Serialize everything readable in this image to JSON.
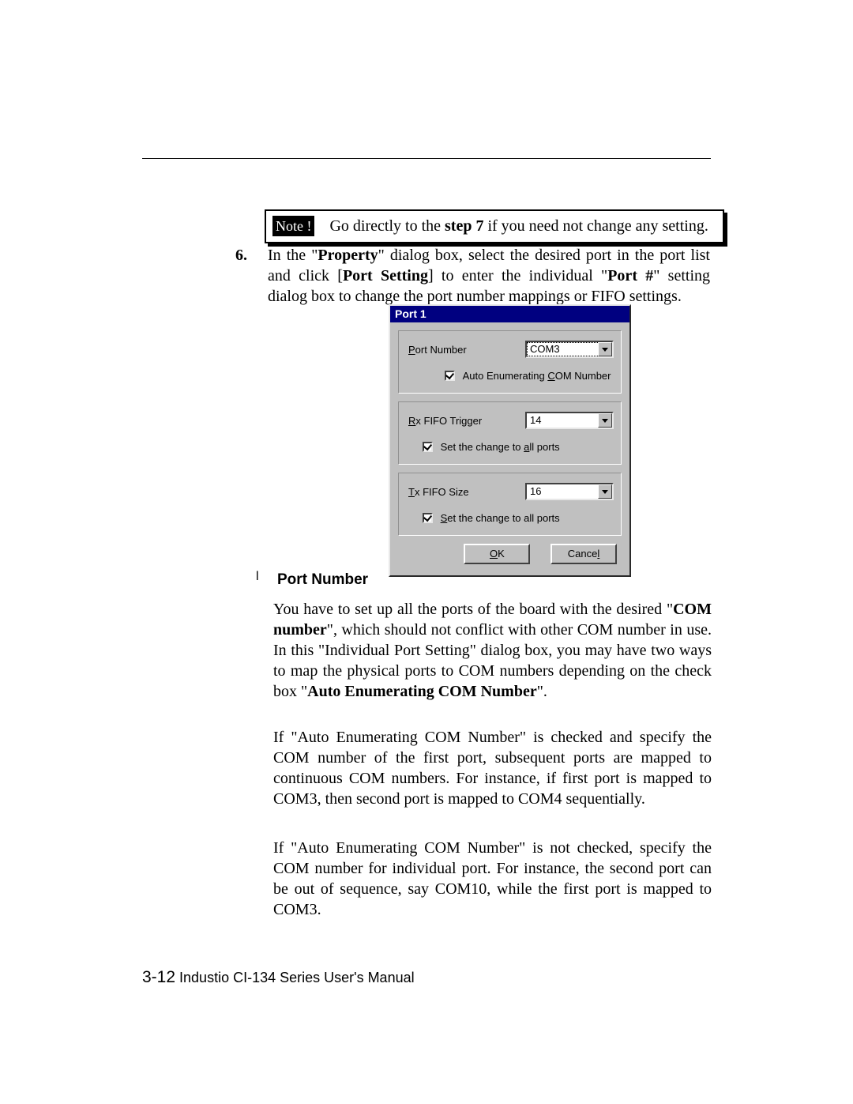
{
  "note": {
    "label": "Note !",
    "text_before": "Go directly to the ",
    "bold": "step 7",
    "text_after": " if you need not change any setting."
  },
  "step": {
    "num": "6.",
    "line": "In the \"",
    "b1": "Property",
    "l2": "\" dialog box, select the desired port in the port list and click [",
    "b2": "Port Setting",
    "l3": "] to enter the individual \"",
    "b3": "Port #",
    "l4": "\" setting dialog box to change the port number mappings or FIFO settings."
  },
  "dialog": {
    "title": "Port 1",
    "port_number_label_pre": "P",
    "port_number_label_post": "ort Number",
    "port_number_value": "COM3",
    "auto_enum_pre": "Auto Enumerating ",
    "auto_enum_u": "C",
    "auto_enum_post": "OM Number",
    "rx_label_u": "R",
    "rx_label_post": "x FIFO Trigger",
    "rx_value": "14",
    "rx_check_pre": "Set the change to ",
    "rx_check_u": "a",
    "rx_check_post": "ll ports",
    "tx_label_u": "T",
    "tx_label_post": "x FIFO Size",
    "tx_value": "16",
    "tx_check_u": "S",
    "tx_check_post": "et the change to all ports",
    "ok_u": "O",
    "ok_post": "K",
    "cancel_pre": "Cance",
    "cancel_u": "l"
  },
  "bullet_head": "Port Number",
  "para1": {
    "t1": "You have to set up all the ports of the board with the desired \"",
    "b1": "COM number",
    "t2": "\", which should not conflict with other COM number in use. In this \"Individual Port Setting\" dialog box, you may have two ways to map the physical ports to COM numbers depending on the check box \"",
    "b2": "Auto Enumerating COM Number",
    "t3": "\"."
  },
  "para2": "If \"Auto Enumerating COM Number\" is checked and specify the COM number of the first port, subsequent ports are mapped to continuous COM numbers. For instance, if first port is mapped to COM3, then second port is mapped to COM4 sequentially.",
  "para3": "If \"Auto Enumerating COM Number\" is not checked, specify the COM number for individual port. For instance, the second port can be out of sequence, say COM10, while the first port is mapped to COM3.",
  "footer": {
    "page": "3-12",
    "text": " Industio CI-134 Series User's Manual"
  }
}
